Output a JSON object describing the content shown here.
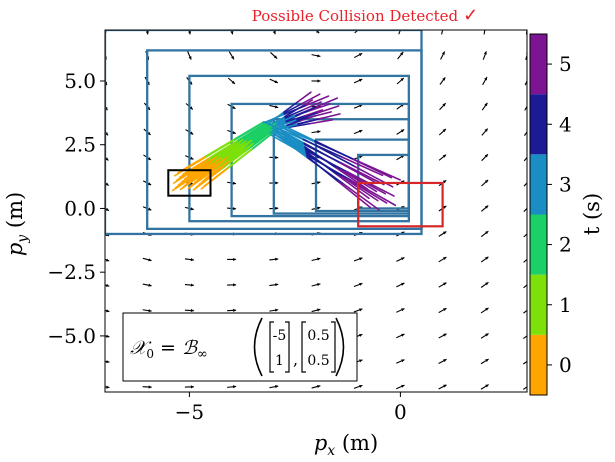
{
  "chart_data": {
    "type": "line",
    "title": "Possible Collision Detected",
    "title_mark": "✓",
    "title_color": "#e8222b",
    "xlabel": {
      "var": "p",
      "sub": "x",
      "unit": " (m)"
    },
    "ylabel": {
      "var": "p",
      "sub": "y",
      "unit": " (m)"
    },
    "xlim": [
      -7,
      3
    ],
    "ylim": [
      -7.2,
      7
    ],
    "xticks": [
      {
        "value": -5,
        "label": "−5"
      },
      {
        "value": 0,
        "label": "0"
      }
    ],
    "yticks": [
      {
        "value": 5,
        "label": "5.0"
      },
      {
        "value": 2.5,
        "label": "2.5"
      },
      {
        "value": 0,
        "label": "0.0"
      },
      {
        "value": -2.5,
        "label": "−2.5"
      },
      {
        "value": -5,
        "label": "−5.0"
      }
    ],
    "grid": false,
    "colorbar": {
      "label": "t (s)",
      "range": [
        -0.5,
        5.5
      ],
      "ticks": [
        0,
        1,
        2,
        3,
        4,
        5
      ],
      "bands": [
        {
          "value": 0,
          "color": "#ffa500"
        },
        {
          "value": 1,
          "color": "#7ee00a"
        },
        {
          "value": 2,
          "color": "#1ccf66"
        },
        {
          "value": 3,
          "color": "#1a8ec4"
        },
        {
          "value": 4,
          "color": "#1b1b96"
        },
        {
          "value": 5,
          "color": "#7d1494"
        }
      ]
    },
    "initial_set": {
      "center": [
        -5,
        1
      ],
      "radius": [
        0.5,
        0.5
      ],
      "color": "#000000"
    },
    "unsafe_set": {
      "x": [
        -1,
        1
      ],
      "y": [
        -0.7,
        1
      ],
      "color": "#d62728"
    },
    "reach_boxes_color": "#3274a1",
    "reach_boxes": [
      {
        "x": [
          -7,
          0.5
        ],
        "y": [
          -1,
          7
        ]
      },
      {
        "x": [
          -6,
          0.5
        ],
        "y": [
          -0.8,
          6.2
        ]
      },
      {
        "x": [
          -5,
          0.2
        ],
        "y": [
          -0.5,
          5.2
        ]
      },
      {
        "x": [
          -4,
          0.2
        ],
        "y": [
          -0.3,
          4.1
        ]
      },
      {
        "x": [
          -3,
          0.2
        ],
        "y": [
          -0.2,
          3.5
        ]
      },
      {
        "x": [
          -2,
          0.2
        ],
        "y": [
          -0.1,
          2.7
        ]
      },
      {
        "x": [
          -1,
          0.2
        ],
        "y": [
          0,
          2.1
        ]
      }
    ],
    "trajectory_fan": {
      "start": {
        "x": [
          -5.4,
          -4.6
        ],
        "y": [
          0.7,
          1.4
        ]
      },
      "mid": {
        "x": [
          -3.3,
          -2.9
        ],
        "y": [
          3.0,
          3.4
        ]
      },
      "end_upper": {
        "x": [
          -2.2,
          -1.4
        ],
        "y": [
          3.4,
          4.6
        ]
      },
      "end_lower": {
        "x": [
          -0.8,
          0
        ],
        "y": [
          -0.1,
          1.3
        ]
      },
      "count": 32
    },
    "vector_field": {
      "x_step": 1,
      "y_step": 1
    }
  },
  "legend_box": {
    "lhs": "𝒳",
    "lhs_sub": "0",
    "eq": " = ",
    "set": "ℬ",
    "set_sub": "∞",
    "center": [
      "-5",
      "1"
    ],
    "radius": [
      "0.5",
      "0.5"
    ]
  }
}
